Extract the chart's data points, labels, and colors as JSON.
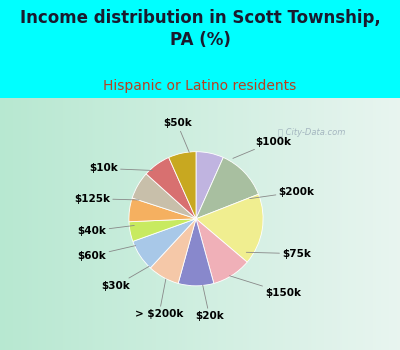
{
  "title": "Income distribution in Scott Township,\nPA (%)",
  "subtitle": "Hispanic or Latino residents",
  "top_bg_color": "#00FFFF",
  "chart_bg_left": "#b8e8d8",
  "chart_bg_right": "#e8f5f0",
  "watermark": "City-Data.com",
  "labels": [
    "$100k",
    "$200k",
    "$75k",
    "$150k",
    "$20k",
    "> $200k",
    "$30k",
    "$60k",
    "$40k",
    "$125k",
    "$10k",
    "$50k"
  ],
  "values": [
    7,
    13,
    18,
    10,
    9,
    8,
    8,
    5,
    6,
    7,
    7,
    7
  ],
  "colors": [
    "#c0b4e0",
    "#a8bfa0",
    "#f0ee90",
    "#f0b0b8",
    "#8888cc",
    "#f5c8a8",
    "#a8c8e8",
    "#c8ea60",
    "#f5b060",
    "#c8bfaa",
    "#d87070",
    "#c8a820"
  ],
  "label_fontsize": 7.5,
  "title_fontsize": 12,
  "subtitle_fontsize": 10,
  "title_color": "#1a1a2e",
  "subtitle_color": "#b84020"
}
